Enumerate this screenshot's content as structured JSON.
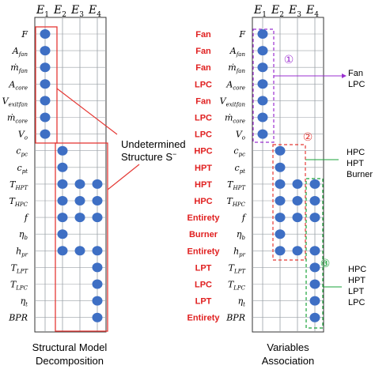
{
  "columns": [
    "E1",
    "E2",
    "E3",
    "E4"
  ],
  "variables": [
    {
      "base": "F",
      "sub": ""
    },
    {
      "base": "A",
      "sub": "fan"
    },
    {
      "base": "ṁ",
      "sub": "fan"
    },
    {
      "base": "A",
      "sub": "core"
    },
    {
      "base": "V",
      "sub": "exitfan"
    },
    {
      "base": "ṁ",
      "sub": "core"
    },
    {
      "base": "V",
      "sub": "o"
    },
    {
      "base": "c",
      "sub": "pc"
    },
    {
      "base": "c",
      "sub": "pt"
    },
    {
      "base": "T",
      "sub": "HPT"
    },
    {
      "base": "T",
      "sub": "HPC"
    },
    {
      "base": "f",
      "sub": ""
    },
    {
      "base": "η",
      "sub": "b"
    },
    {
      "base": "h",
      "sub": "pr"
    },
    {
      "base": "T",
      "sub": "LPT"
    },
    {
      "base": "T",
      "sub": "LPC"
    },
    {
      "base": "η",
      "sub": "t"
    },
    {
      "base": "BPR",
      "sub": ""
    }
  ],
  "incidence": [
    [
      1,
      0,
      0,
      0
    ],
    [
      1,
      0,
      0,
      0
    ],
    [
      1,
      0,
      0,
      0
    ],
    [
      1,
      0,
      0,
      0
    ],
    [
      1,
      0,
      0,
      0
    ],
    [
      1,
      0,
      0,
      0
    ],
    [
      1,
      0,
      0,
      0
    ],
    [
      0,
      1,
      0,
      0
    ],
    [
      0,
      1,
      0,
      0
    ],
    [
      0,
      1,
      1,
      1
    ],
    [
      0,
      1,
      1,
      1
    ],
    [
      0,
      1,
      1,
      1
    ],
    [
      0,
      1,
      0,
      0
    ],
    [
      0,
      1,
      1,
      1
    ],
    [
      0,
      0,
      0,
      1
    ],
    [
      0,
      0,
      0,
      1
    ],
    [
      0,
      0,
      0,
      1
    ],
    [
      0,
      0,
      0,
      1
    ]
  ],
  "association_labels": [
    "Fan",
    "Fan",
    "Fan",
    "LPC",
    "Fan",
    "LPC",
    "LPC",
    "HPC",
    "HPT",
    "HPT",
    "HPC",
    "Entirety",
    "Burner",
    "Entirety",
    "LPT",
    "LPC",
    "LPT",
    "Entirety"
  ],
  "left_panel": {
    "annotation_line1": "Undetermined",
    "annotation_line2": "Structure S",
    "annotation_sup": "−",
    "caption_line1": "Structural Model",
    "caption_line2": "Decomposition"
  },
  "right_panel": {
    "caption_line1": "Variables",
    "caption_line2": "Association",
    "groups": [
      {
        "number": "①",
        "lines": [
          "Fan",
          "LPC"
        ],
        "color": "#9b30d0"
      },
      {
        "number": "②",
        "lines": [
          "HPC",
          "HPT",
          "Burner"
        ],
        "color": "#e53935"
      },
      {
        "number": "③",
        "lines": [
          "HPC",
          "HPT",
          "LPT",
          "LPC"
        ],
        "color": "#1aa33a"
      }
    ]
  },
  "colors": {
    "dot": "#3e6fc4",
    "red_box": "#e53935",
    "label_red": "#e02020",
    "grid": "#9aa0a6"
  }
}
